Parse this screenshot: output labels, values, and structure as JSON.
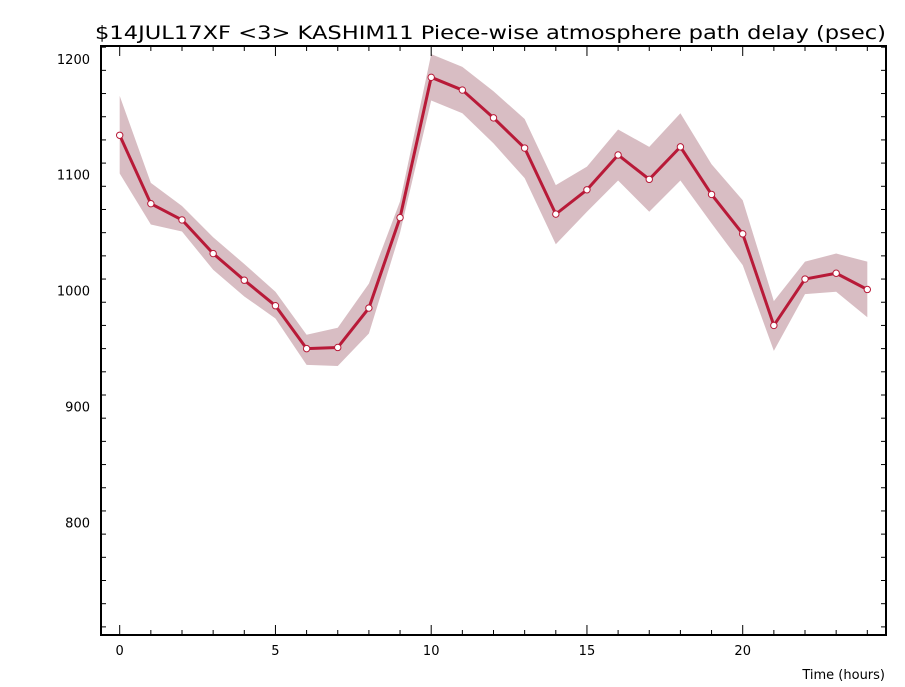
{
  "chart_data": {
    "type": "line",
    "title": "$14JUL17XF <3>  KASHIM11  Piece-wise atmosphere path delay (psec)",
    "xlabel": "Time (hours)",
    "ylabel": "",
    "xlim": [
      -0.6,
      24.6
    ],
    "ylim": [
      703,
      1211
    ],
    "xticks": [
      0,
      5,
      10,
      15,
      20
    ],
    "xtick_labels": [
      "0",
      "5",
      "10",
      "15",
      "20"
    ],
    "yticks": [
      800,
      900,
      1000,
      1100,
      1200
    ],
    "ytick_labels": [
      "800",
      "900",
      "1000",
      "1100",
      "1200"
    ],
    "grid": false,
    "series": [
      {
        "x": [
          0,
          1,
          2,
          3,
          4,
          5,
          6,
          7,
          8,
          9,
          10,
          11,
          12,
          13,
          14,
          15,
          16,
          17,
          18,
          19,
          20,
          21,
          22,
          23,
          24
        ],
        "values": [
          1134,
          1075,
          1061,
          1032,
          1009,
          987,
          950,
          951,
          985,
          1063,
          1184,
          1173,
          1149,
          1123,
          1066,
          1087,
          1117,
          1096,
          1124,
          1083,
          1049,
          970,
          1010,
          1015,
          1001
        ],
        "lower": [
          1101,
          1057,
          1051,
          1018,
          995,
          976,
          936,
          935,
          963,
          1050,
          1164,
          1153,
          1127,
          1097,
          1040,
          1068,
          1095,
          1068,
          1095,
          1058,
          1022,
          948,
          997,
          999,
          977
        ],
        "upper": [
          1168,
          1093,
          1073,
          1046,
          1023,
          999,
          962,
          968,
          1006,
          1077,
          1204,
          1193,
          1172,
          1148,
          1091,
          1107,
          1139,
          1124,
          1153,
          1109,
          1078,
          991,
          1025,
          1032,
          1025
        ]
      }
    ]
  },
  "colors": {
    "line": "#b81a38",
    "marker_fill": "#ffffff",
    "band": "#d8bdc3",
    "axes": "#000000"
  }
}
